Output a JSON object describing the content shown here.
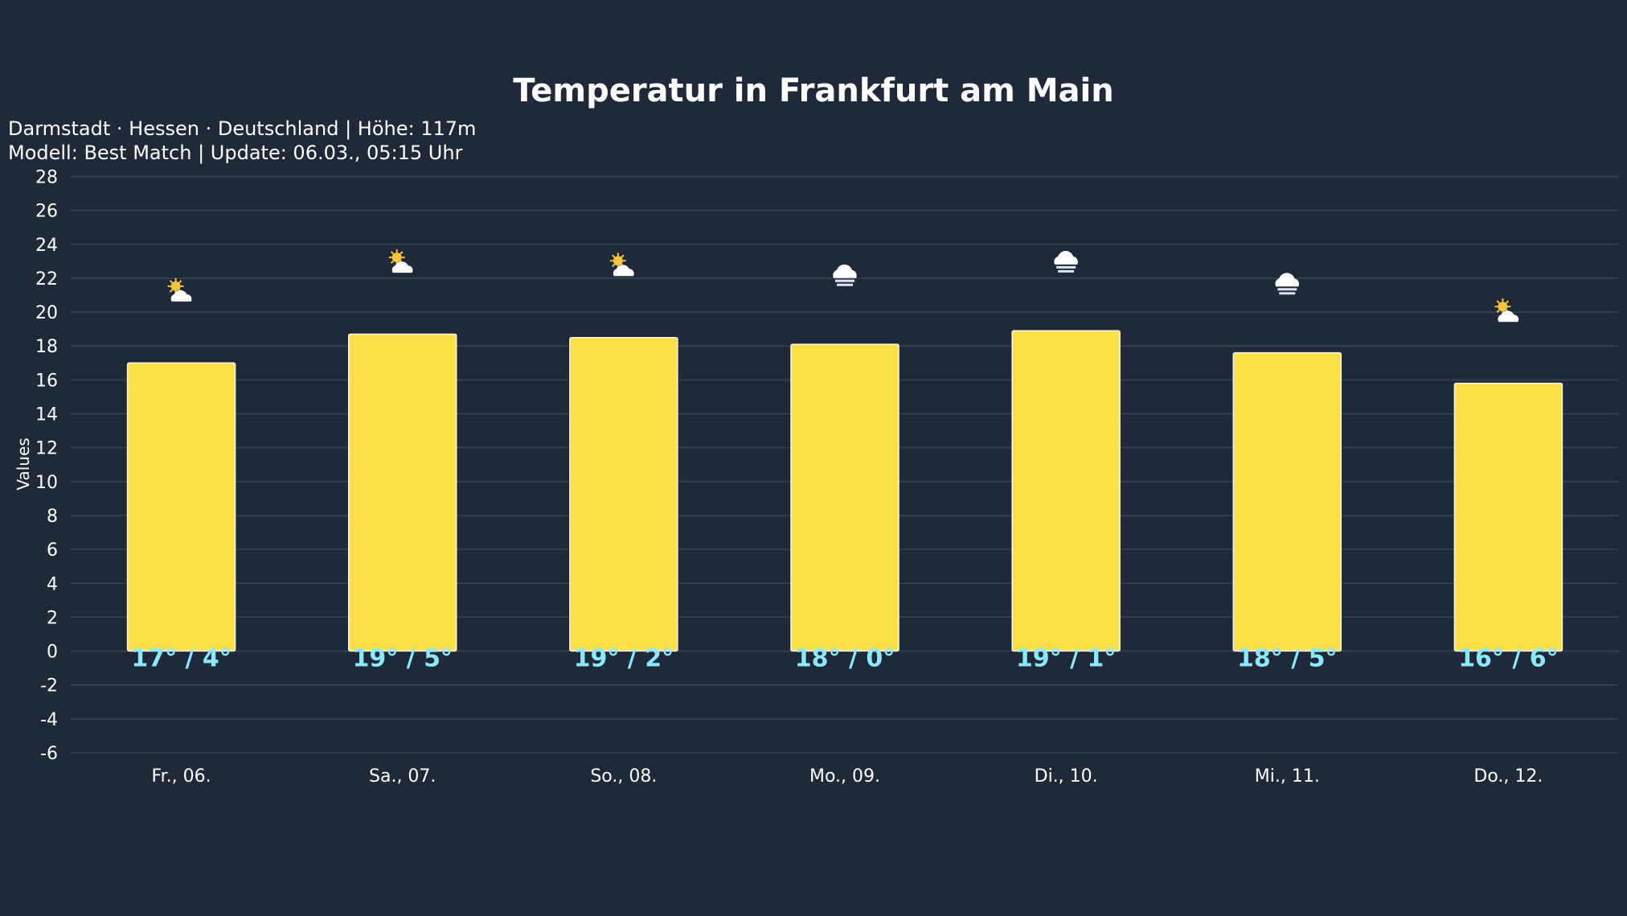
{
  "chart_data": {
    "type": "bar",
    "title": "Temperatur in Frankfurt am Main",
    "subtitle": [
      "Darmstadt · Hessen · Deutschland | Höhe: 117m",
      "Modell: Best Match | Update: 06.03., 05:15 Uhr"
    ],
    "xlabel": "",
    "ylabel": "Values",
    "ylim": [
      -6,
      28
    ],
    "yticks": [
      -6,
      -4,
      -2,
      0,
      2,
      4,
      6,
      8,
      10,
      12,
      14,
      16,
      18,
      20,
      22,
      24,
      26,
      28
    ],
    "grid": true,
    "categories": [
      "Fr., 06.",
      "Sa., 07.",
      "So., 08.",
      "Mo., 09.",
      "Di., 10.",
      "Mi., 11.",
      "Do., 12."
    ],
    "values": [
      17.0,
      18.7,
      18.5,
      18.1,
      18.9,
      17.6,
      15.8
    ],
    "data_labels": [
      "17° / 4°",
      "19° / 5°",
      "19° / 2°",
      "18° / 0°",
      "19° / 1°",
      "18° / 5°",
      "16° / 6°"
    ],
    "icons": [
      "sun-behind-cloud",
      "sun-behind-cloud",
      "sun-behind-cloud",
      "fog",
      "fog",
      "fog",
      "sun-behind-cloud"
    ],
    "colors": {
      "background": "#1f2937",
      "bar": "#fde047",
      "bar_border": "#f5f5f5",
      "grid": "#3b4452",
      "data_label": "#8be9fd",
      "text": "#ffffff"
    }
  }
}
